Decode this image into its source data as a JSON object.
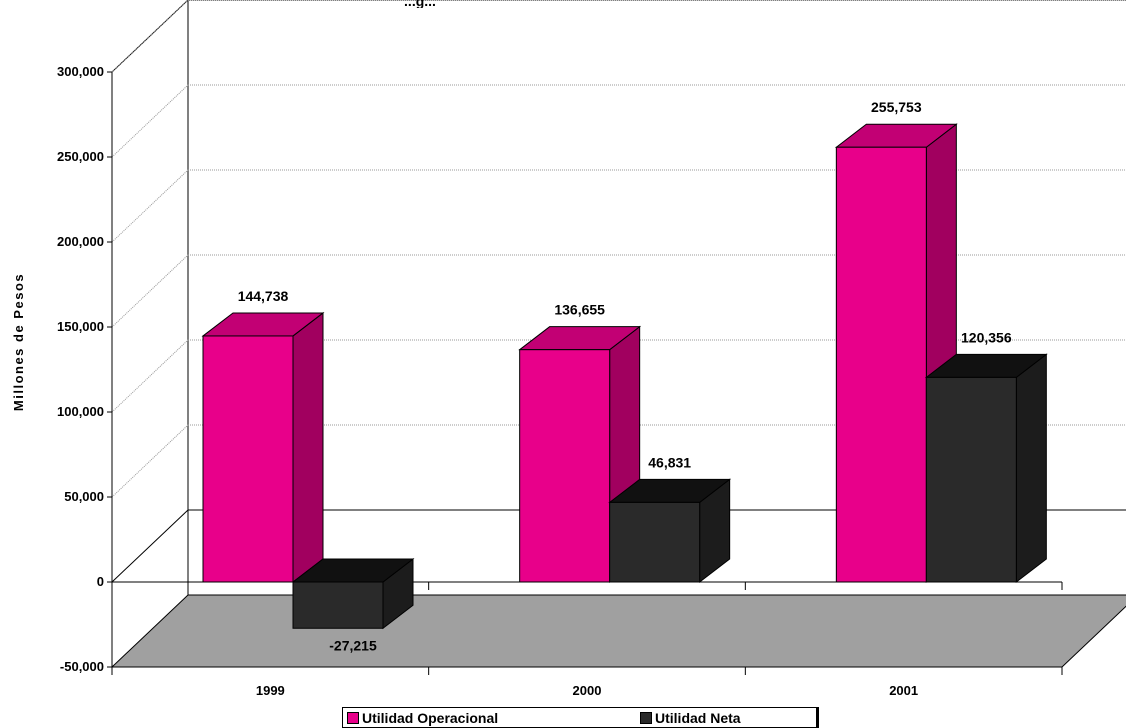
{
  "chart_data": {
    "type": "bar",
    "title": "...g...",
    "ylabel": "Millones de Pesos",
    "categories": [
      "1999",
      "2000",
      "2001"
    ],
    "series": [
      {
        "name": "Utilidad Operacional",
        "color": "#e8008a",
        "values": [
          144738,
          136655,
          255753
        ]
      },
      {
        "name": "Utilidad Neta",
        "color": "#2a2a2a",
        "values": [
          -27215,
          46831,
          120356
        ]
      }
    ],
    "data_labels": [
      [
        "144,738",
        "136,655",
        "255,753"
      ],
      [
        "-27,215",
        "46,831",
        "120,356"
      ]
    ],
    "ylim": [
      -50000,
      300000
    ],
    "yticks": [
      -50000,
      0,
      50000,
      100000,
      150000,
      200000,
      250000,
      300000
    ],
    "ytick_labels": [
      "-50,000",
      "0",
      "50,000",
      "100,000",
      "150,000",
      "200,000",
      "250,000",
      "300,000"
    ],
    "grid": true,
    "legend": "bottom",
    "floor_color": "#a0a0a0"
  }
}
